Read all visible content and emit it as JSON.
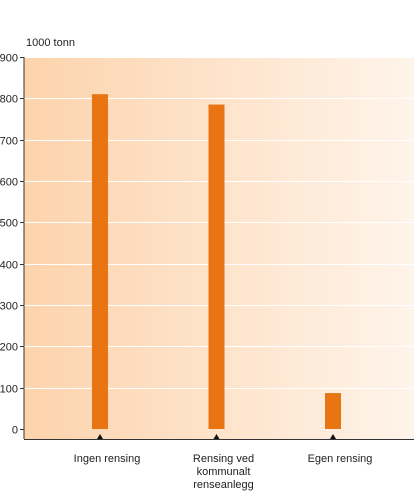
{
  "chart_data": {
    "type": "bar",
    "unit_label": "1000 tonn",
    "categories": [
      [
        "Ingen rensing"
      ],
      [
        "Rensing ved",
        "kommunalt",
        "renseanlegg"
      ],
      [
        "Egen rensing"
      ]
    ],
    "values": [
      810,
      785,
      87
    ],
    "ylim": [
      0,
      900
    ],
    "yticks": [
      0,
      100,
      200,
      300,
      400,
      500,
      600,
      700,
      800,
      900
    ],
    "bar_color": "#E87511",
    "background_gradient": [
      "#FDD3AC",
      "#FEF4EA"
    ],
    "grid": true,
    "grid_color": "#FFFFFF",
    "legend": "none"
  }
}
